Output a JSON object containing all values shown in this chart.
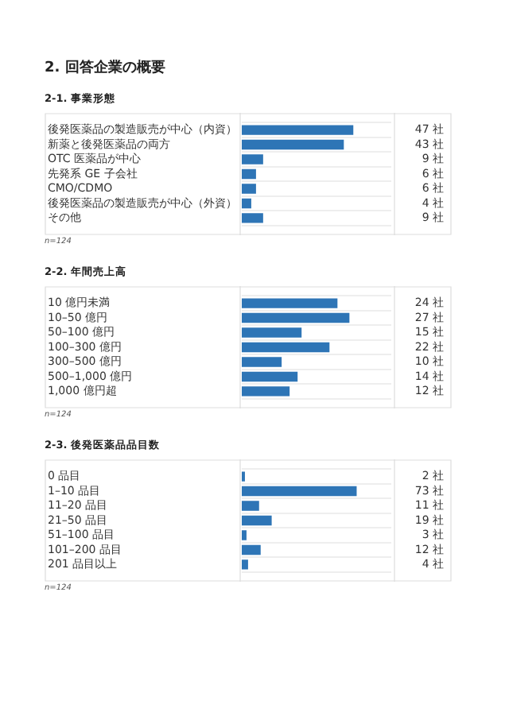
{
  "chart_data": [
    {
      "type": "bar",
      "orientation": "horizontal",
      "title": "2. 回答企業の概要",
      "subtitle": "2-1. 事業形態",
      "categories": [
        "後発医薬品の製造販売が中心（内資）",
        "新薬と後発医薬品の両方",
        "OTC 医薬品が中心",
        "先発系 GE 子会社",
        "CMO/CDMO",
        "後発医薬品の製造販売が中心（外資）",
        "その他"
      ],
      "values": [
        47,
        43,
        9,
        6,
        6,
        4,
        9
      ],
      "value_labels": [
        "47 社",
        "43 社",
        "9 社",
        "6 社",
        "6 社",
        "4 社",
        "9 社"
      ],
      "color": "#2e75b6",
      "xlim": [
        0,
        63
      ],
      "tick_labels": "y",
      "grid": "y",
      "annotations": [
        "n=124"
      ]
    },
    {
      "type": "bar",
      "orientation": "horizontal",
      "title": "2-2. 年間売上高",
      "categories": [
        "10 億円未満",
        "10–50 億円",
        "50–100 億円",
        "100–300 億円",
        "300–500 億円",
        "500–1,000 億円",
        "1,000 億円超"
      ],
      "values": [
        24,
        27,
        15,
        22,
        10,
        14,
        12
      ],
      "value_labels": [
        "24 社",
        "27 社",
        "15 社",
        "22 社",
        "10 社",
        "14 社",
        "12 社"
      ],
      "color": "#2e75b6",
      "xlim": [
        0,
        37.5
      ],
      "tick_labels": "y",
      "grid": "y",
      "annotations": [
        "n=124"
      ]
    },
    {
      "type": "bar",
      "orientation": "horizontal",
      "title": "2-3. 後発医薬品品目数",
      "categories": [
        "0 品目",
        "1–10 品目",
        "11–20 品目",
        "21–50 品目",
        "51–100 品目",
        "101–200 品目",
        "201 品目以上"
      ],
      "values": [
        2,
        73,
        11,
        19,
        3,
        12,
        4
      ],
      "value_labels": [
        "2 社",
        "73 社",
        "11 社",
        "19 社",
        "3 社",
        "12 社",
        "4 社"
      ],
      "color": "#2e75b6",
      "xlim": [
        0,
        95
      ],
      "tick_labels": "y",
      "grid": "y",
      "annotations": [
        "n=124"
      ]
    }
  ]
}
